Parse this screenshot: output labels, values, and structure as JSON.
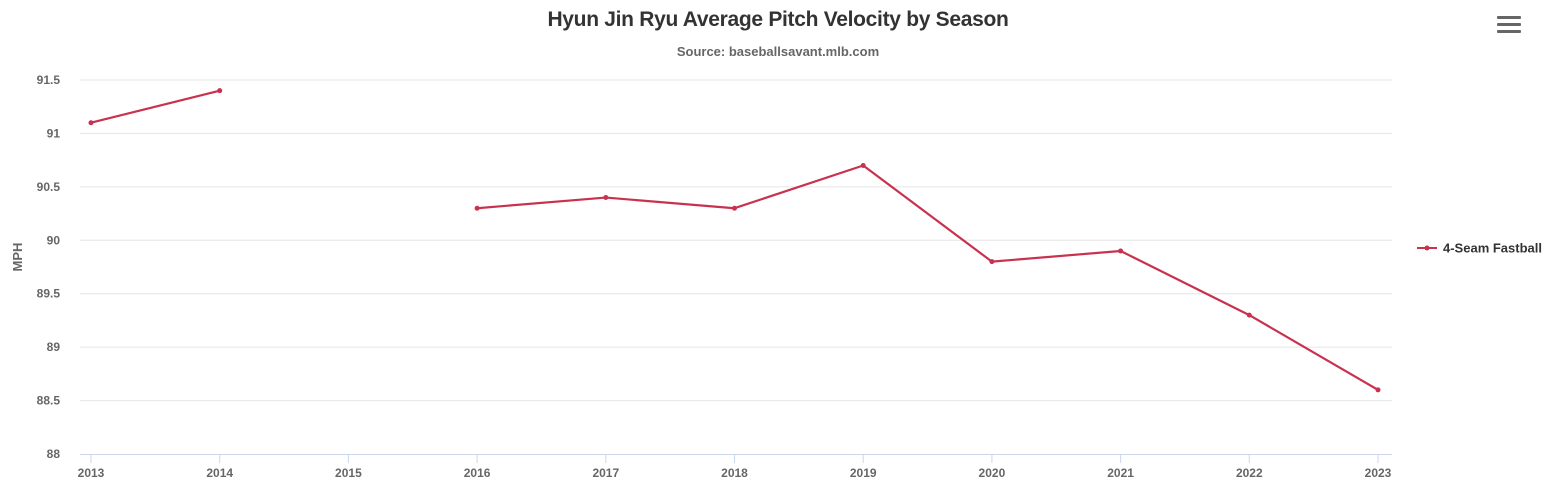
{
  "chart_data": {
    "type": "line",
    "title": "Hyun Jin Ryu Average Pitch Velocity by Season",
    "subtitle": "Source: baseballsavant.mlb.com",
    "xlabel": "",
    "ylabel": "MPH",
    "categories": [
      "2013",
      "2014",
      "2015",
      "2016",
      "2017",
      "2018",
      "2019",
      "2020",
      "2021",
      "2022",
      "2023"
    ],
    "ylim": [
      88,
      91.5
    ],
    "yticks": [
      88,
      88.5,
      89,
      89.5,
      90,
      90.5,
      91,
      91.5
    ],
    "ytick_labels": [
      "88",
      "88.5",
      "89",
      "89.5",
      "90",
      "90.5",
      "91",
      "91.5"
    ],
    "grid": true,
    "legend_position": "right",
    "series": [
      {
        "name": "4-Seam Fastball",
        "color": "#c8324f",
        "values": [
          91.1,
          91.4,
          null,
          90.3,
          90.4,
          90.3,
          90.7,
          89.8,
          89.9,
          89.3,
          88.6
        ]
      }
    ]
  },
  "ui": {
    "menu_icon": "hamburger-menu-icon"
  }
}
